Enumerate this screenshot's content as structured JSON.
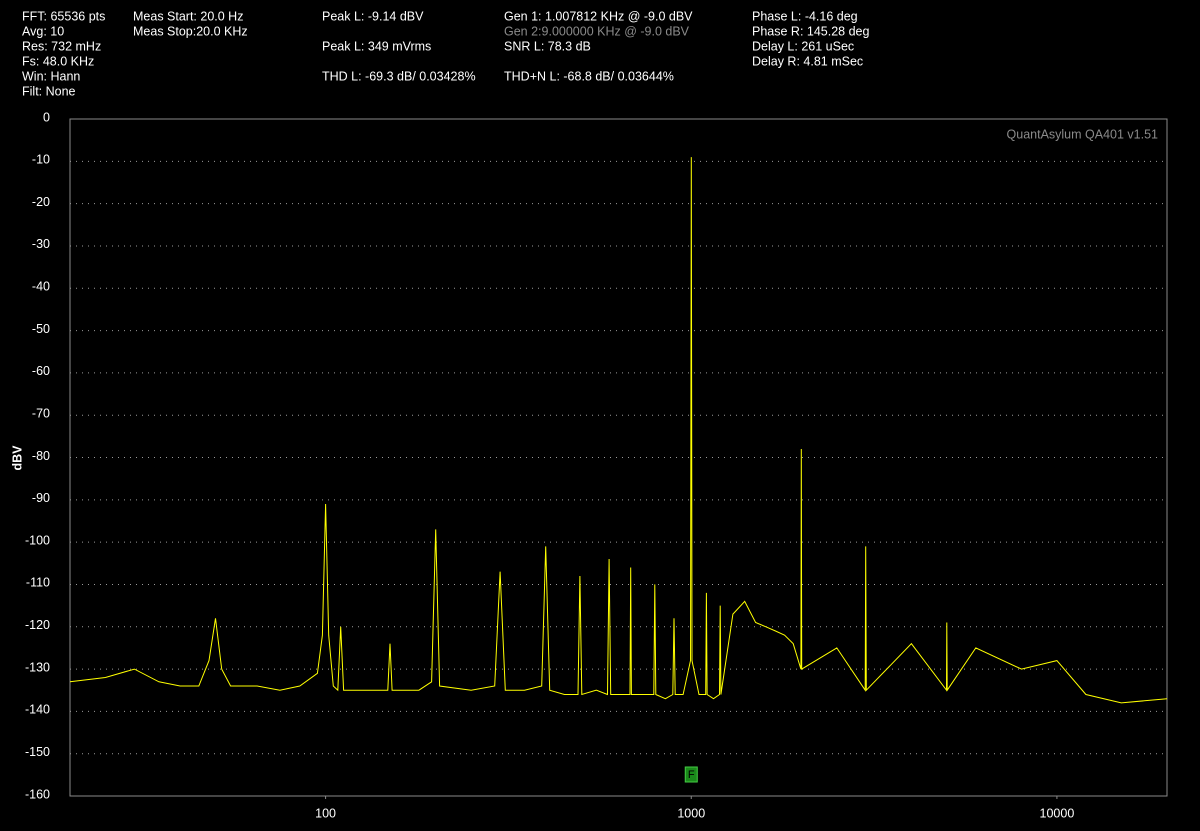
{
  "readouts": {
    "col1": [
      "FFT: 65536 pts",
      "Avg: 10",
      "Res: 732 mHz",
      "Fs: 48.0 KHz",
      "Win: Hann",
      "Filt: None"
    ],
    "col2": [
      "Meas Start: 20.0 Hz",
      "Meas Stop:20.0 KHz"
    ],
    "col3": [
      "Peak L: -9.14 dBV",
      "Peak L: 349 mVrms",
      "THD L: -69.3 dB/ 0.03428%"
    ],
    "col4": [
      "Gen 1: 1.007812 KHz @ -9.0  dBV",
      "Gen 2:9.000000 KHz @ -9.0  dBV",
      "SNR L: 78.3 dB",
      "THD+N L: -68.8 dB/ 0.03644%"
    ],
    "col5": [
      "Phase L: -4.16 deg",
      "Phase R: 145.28 deg",
      "Delay L: 261 uSec",
      "Delay R: 4.81 mSec"
    ]
  },
  "chart_data": {
    "type": "line",
    "annotation": "QuantAsylum QA401 v1.51",
    "ylabel": "dBV",
    "color": "#ffff00",
    "xscale": "log",
    "grid": true,
    "xlim": [
      20,
      20000
    ],
    "ylim": [
      -160,
      0
    ],
    "xticks": [
      100,
      1000,
      10000
    ],
    "yticks": [
      0,
      -10,
      -20,
      -30,
      -40,
      -50,
      -60,
      -70,
      -80,
      -90,
      -100,
      -110,
      -120,
      -130,
      -140,
      -150,
      -160
    ],
    "marker": {
      "label": "F",
      "x": 1000
    },
    "x": [
      20,
      25,
      30,
      35,
      40,
      45,
      48,
      50,
      52,
      55,
      65,
      75,
      85,
      95,
      98,
      100,
      102,
      105,
      108,
      110,
      112,
      130,
      148,
      150,
      152,
      180,
      195,
      200,
      205,
      250,
      290,
      300,
      310,
      350,
      390,
      400,
      410,
      450,
      490,
      496,
      502,
      550,
      590,
      596,
      602,
      650,
      680,
      683,
      686,
      750,
      790,
      795,
      800,
      850,
      890,
      897,
      904,
      950,
      995,
      1000,
      1005,
      1050,
      1095,
      1100,
      1105,
      1150,
      1195,
      1200,
      1205,
      1300,
      1400,
      1500,
      1600,
      1700,
      1800,
      1900,
      1995,
      2000,
      2005,
      2500,
      2990,
      3000,
      3010,
      4000,
      4990,
      5000,
      5010,
      6000,
      8000,
      10000,
      12000,
      15000,
      20000
    ],
    "values": [
      -133,
      -132,
      -130,
      -133,
      -134,
      -134,
      -128,
      -118,
      -130,
      -134,
      -134,
      -135,
      -134,
      -131,
      -122,
      -91,
      -122,
      -134,
      -135,
      -120,
      -135,
      -135,
      -135,
      -124,
      -135,
      -135,
      -133,
      -97,
      -134,
      -135,
      -134,
      -107,
      -135,
      -135,
      -134,
      -101,
      -135,
      -136,
      -136,
      -108,
      -136,
      -135,
      -136,
      -104,
      -136,
      -136,
      -136,
      -106,
      -136,
      -136,
      -136,
      -110,
      -136,
      -137,
      -136,
      -118,
      -136,
      -136,
      -128,
      -9,
      -128,
      -136,
      -136,
      -112,
      -136,
      -137,
      -136,
      -115,
      -136,
      -117,
      -114,
      -119,
      -120,
      -121,
      -122,
      -124,
      -130,
      -78,
      -130,
      -125,
      -135,
      -101,
      -135,
      -124,
      -135,
      -119,
      -135,
      -125,
      -130,
      -128,
      -136,
      -138,
      -137
    ]
  }
}
